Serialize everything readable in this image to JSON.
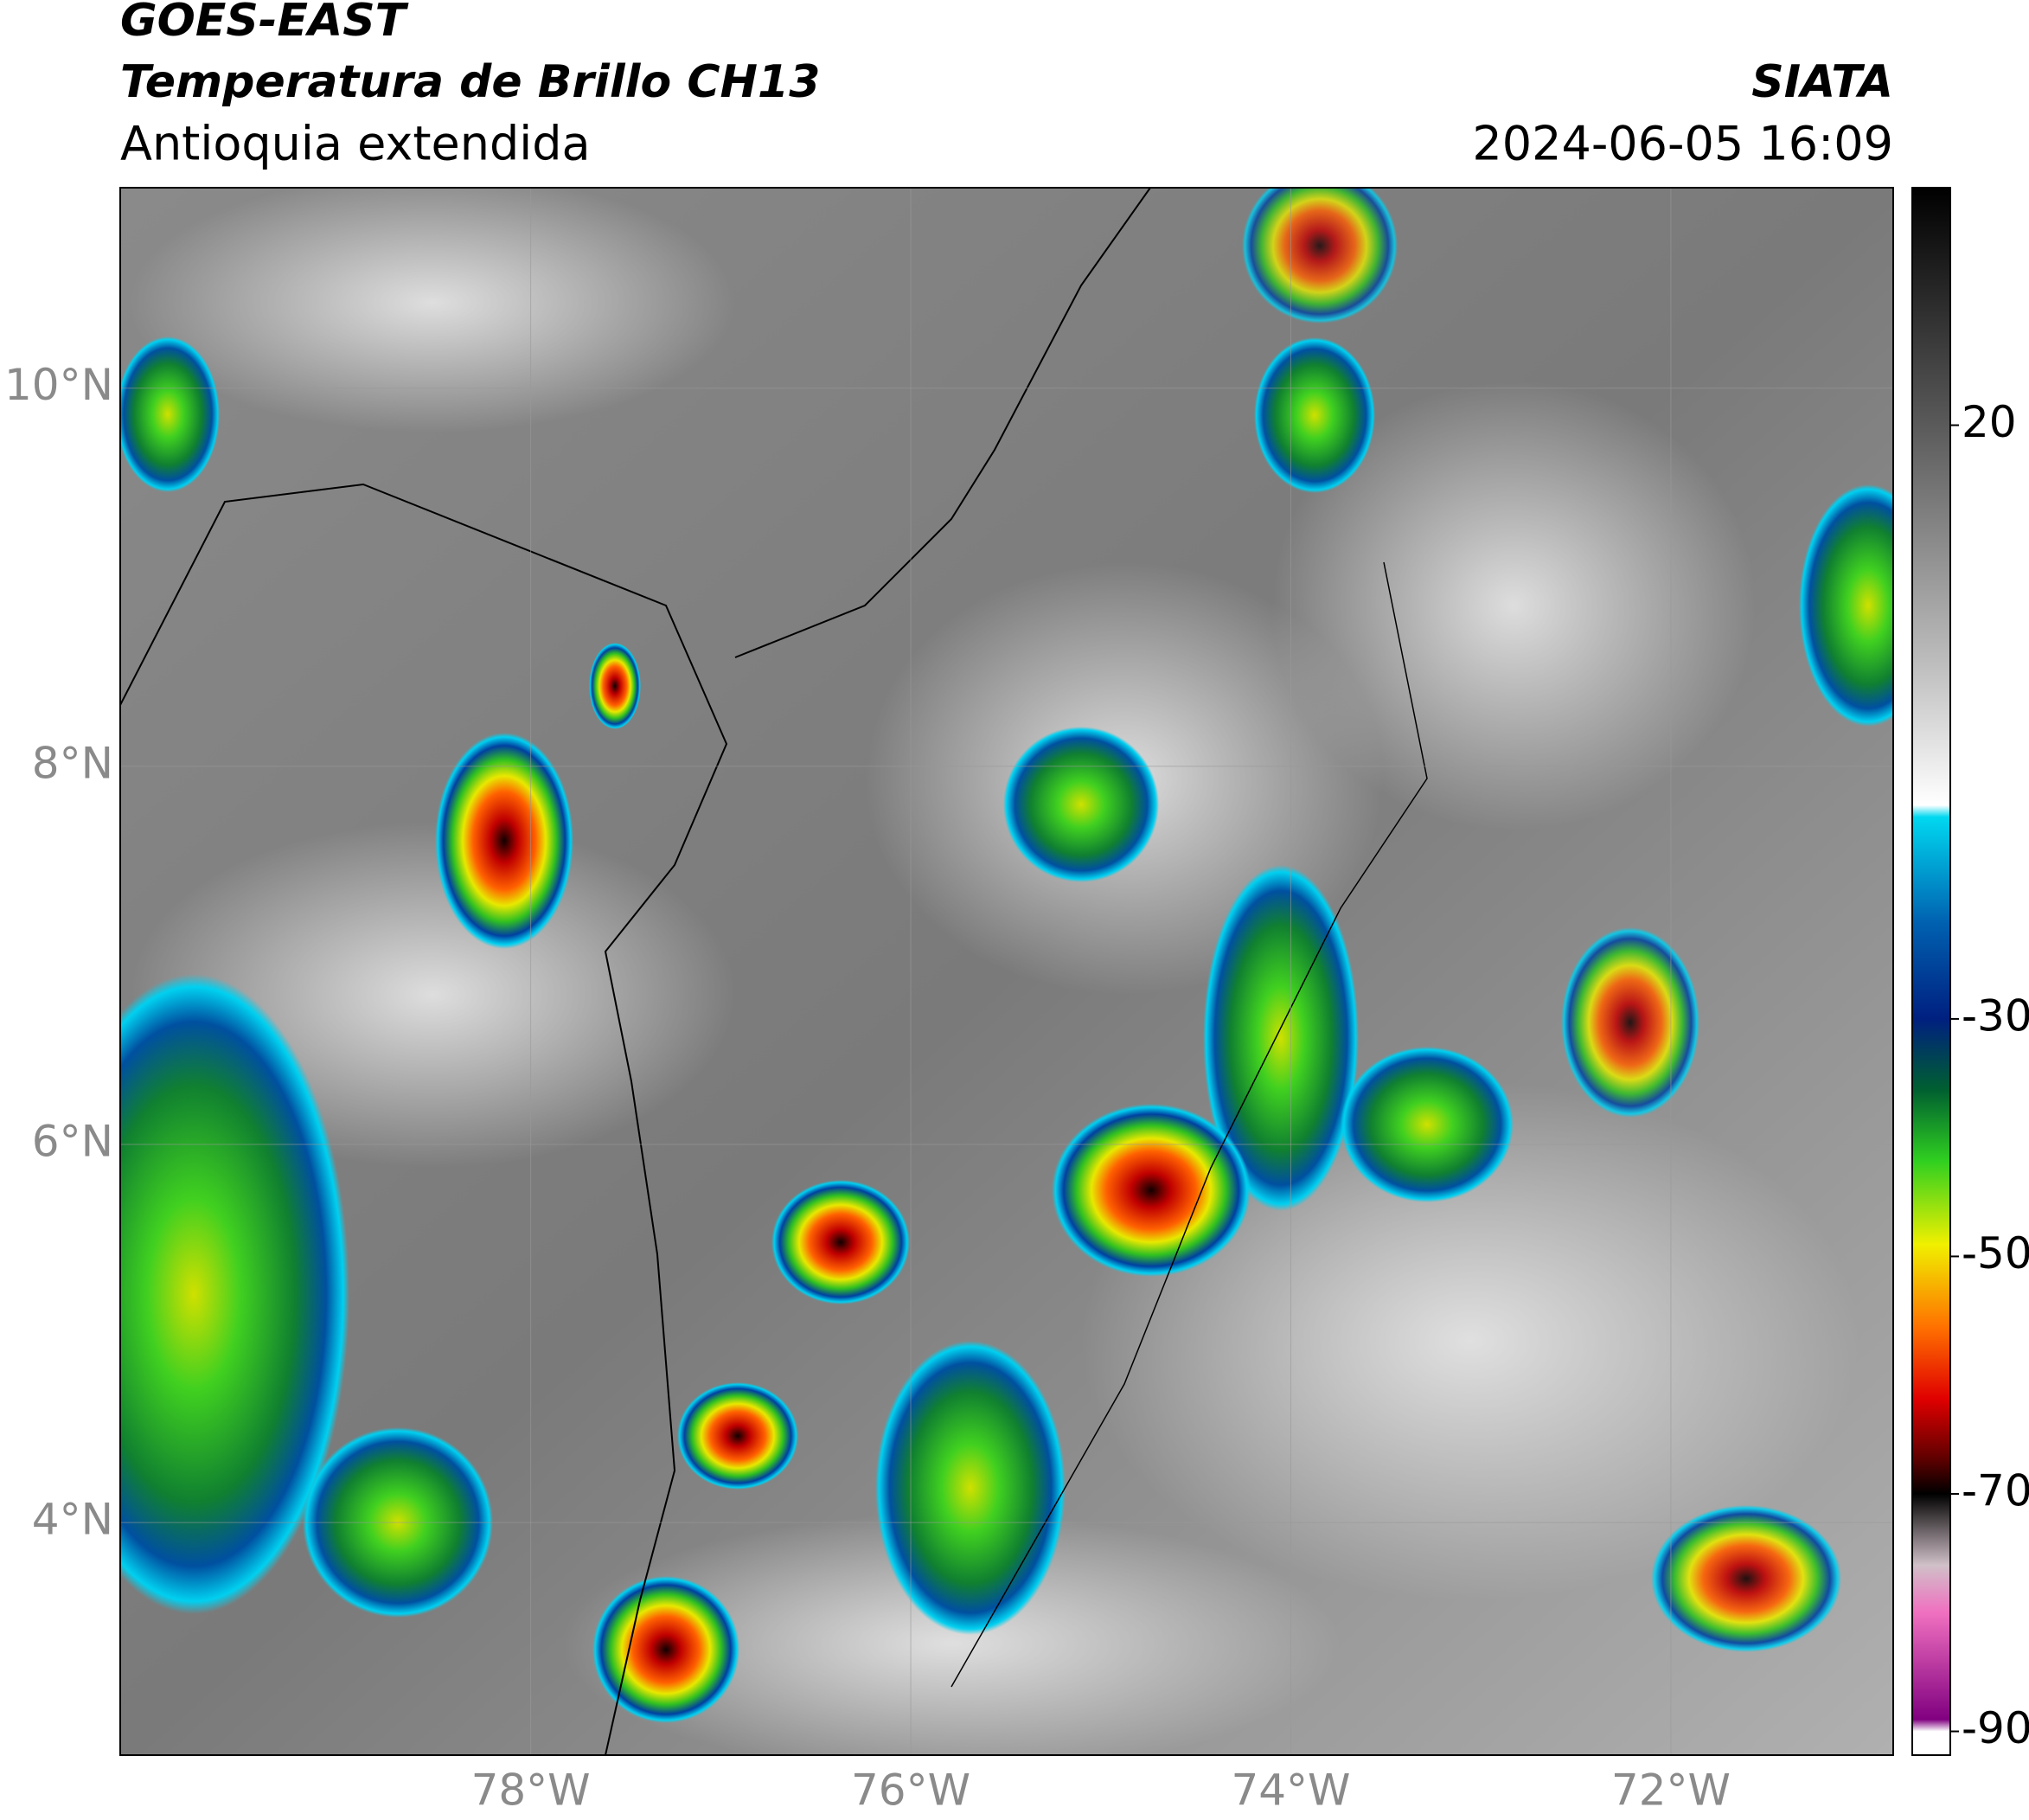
{
  "header": {
    "satellite": "GOES-EAST",
    "product": "Temperatura de Brillo CH13",
    "region": "Antioquia extendida",
    "agency": "SIATA",
    "datetime": "2024-06-05 16:09"
  },
  "map": {
    "lat_range": [
      2.77,
      11.06
    ],
    "lon_range": [
      -80.16,
      -70.83
    ],
    "lat_ticks": [
      {
        "value": 10,
        "label": "10°N"
      },
      {
        "value": 8,
        "label": "8°N"
      },
      {
        "value": 6,
        "label": "6°N"
      },
      {
        "value": 4,
        "label": "4°N"
      }
    ],
    "lon_ticks": [
      {
        "value": -78,
        "label": "78°W"
      },
      {
        "value": -76,
        "label": "76°W"
      },
      {
        "value": -74,
        "label": "74°W"
      },
      {
        "value": -72,
        "label": "72°W"
      }
    ],
    "grid": true
  },
  "colorbar": {
    "lim": [
      -92,
      40
    ],
    "ticks": [
      20,
      -30,
      -50,
      -70,
      -90
    ],
    "colormap": [
      {
        "value": 40,
        "color": "#000000"
      },
      {
        "value": 20,
        "color": "#5a5a5a"
      },
      {
        "value": 0,
        "color": "#bdbdbd"
      },
      {
        "value": -12,
        "color": "#ffffff"
      },
      {
        "value": -13,
        "color": "#00d8f0"
      },
      {
        "value": -22,
        "color": "#0060b0"
      },
      {
        "value": -30,
        "color": "#002080"
      },
      {
        "value": -36,
        "color": "#006030"
      },
      {
        "value": -42,
        "color": "#30d020"
      },
      {
        "value": -49,
        "color": "#f0f000"
      },
      {
        "value": -56,
        "color": "#ff7000"
      },
      {
        "value": -62,
        "color": "#e00000"
      },
      {
        "value": -67,
        "color": "#600000"
      },
      {
        "value": -70,
        "color": "#000000"
      },
      {
        "value": -76,
        "color": "#d0c0c8"
      },
      {
        "value": -80,
        "color": "#f070c0"
      },
      {
        "value": -89,
        "color": "#800080"
      },
      {
        "value": -90,
        "color": "#ffffff"
      }
    ]
  }
}
